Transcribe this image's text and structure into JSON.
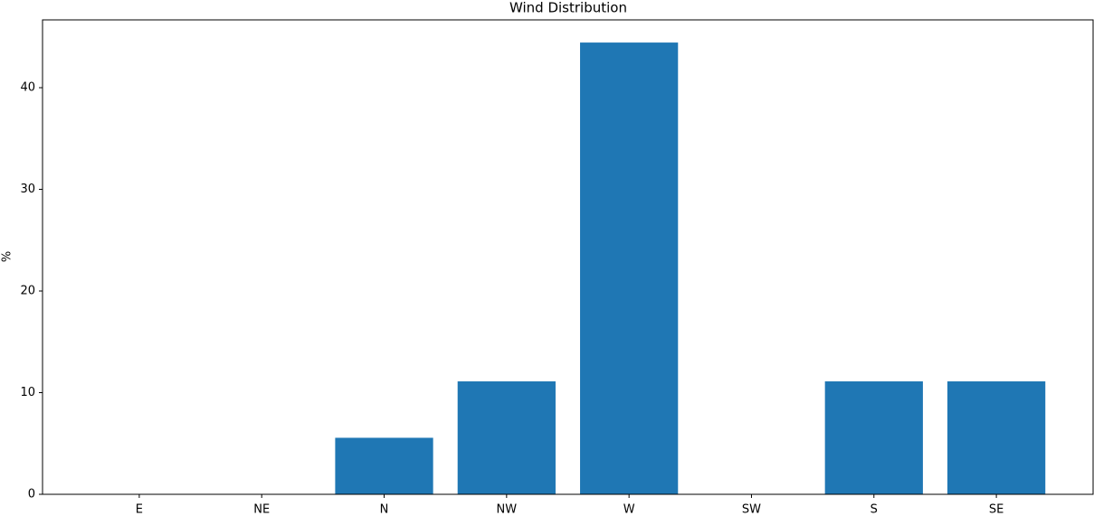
{
  "chart_data": {
    "type": "bar",
    "title": "Wind Distribution",
    "y_label": "%",
    "categories": [
      "E",
      "NE",
      "N",
      "NW",
      "W",
      "SW",
      "S",
      "SE"
    ],
    "values": [
      0,
      0,
      5.56,
      11.11,
      44.44,
      0,
      11.11,
      11.11
    ],
    "color": "#1f77b4",
    "ylim": [
      0,
      46.67
    ],
    "yticks": [
      0,
      10,
      20,
      30,
      40
    ],
    "grid": false
  }
}
